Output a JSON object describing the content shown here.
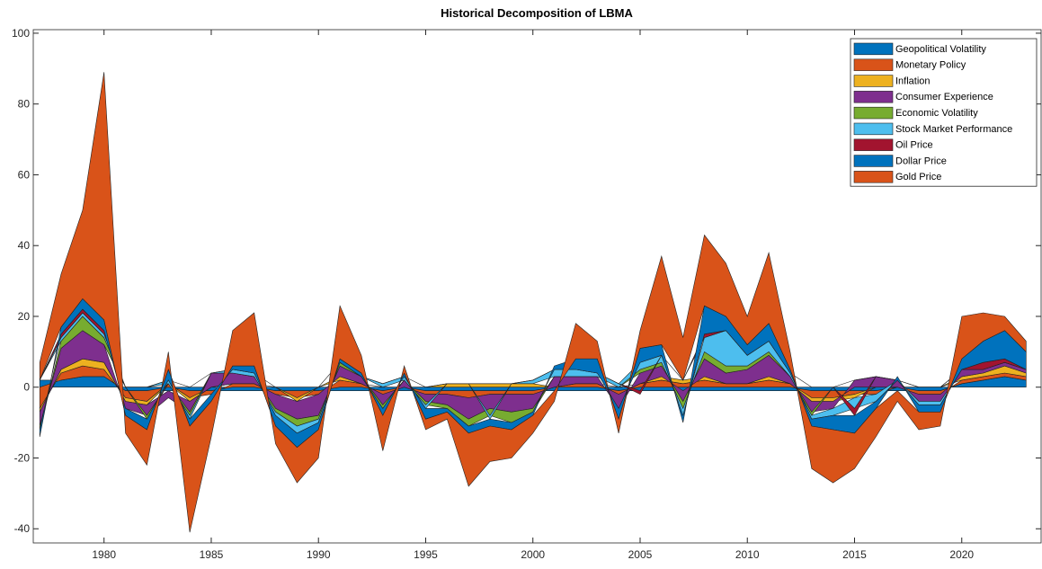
{
  "chart_data": {
    "type": "area",
    "stacked": true,
    "title": "Historical Decomposition of LBMA",
    "x": [
      1977,
      1978,
      1979,
      1980,
      1981,
      1982,
      1983,
      1984,
      1985,
      1986,
      1987,
      1988,
      1989,
      1990,
      1991,
      1992,
      1993,
      1994,
      1995,
      1996,
      1997,
      1998,
      1999,
      2000,
      2001,
      2002,
      2003,
      2004,
      2005,
      2006,
      2007,
      2008,
      2009,
      2010,
      2011,
      2012,
      2013,
      2014,
      2015,
      2016,
      2017,
      2018,
      2019,
      2020,
      2021,
      2022,
      2023
    ],
    "xlim": [
      1976.7,
      2023.7
    ],
    "xticks": [
      1980,
      1985,
      1990,
      1995,
      2000,
      2005,
      2010,
      2015,
      2020
    ],
    "ylim": [
      -44,
      101
    ],
    "yticks": [
      -40,
      -20,
      0,
      20,
      40,
      60,
      80,
      100
    ],
    "legend": "upper right",
    "series": [
      {
        "name": "Geopolitical Volatility",
        "color": "#0072BD",
        "values": [
          2,
          2,
          3,
          3,
          -1,
          -1,
          -1,
          -1,
          -1,
          -1,
          -1,
          -1,
          -1,
          -1,
          -1,
          -1,
          -1,
          -1,
          -1,
          -1,
          -1,
          -1,
          -1,
          -1,
          -1,
          -1,
          -1,
          -1,
          -1,
          -1,
          -1,
          -1,
          -1,
          -1,
          -1,
          -1,
          -1,
          -1,
          -1,
          -1,
          -1,
          -1,
          -1,
          1,
          2,
          3,
          2
        ]
      },
      {
        "name": "Monetary Policy",
        "color": "#D95319",
        "values": [
          -6,
          2,
          3,
          2,
          -2,
          -3,
          1,
          -2,
          -1,
          1,
          1,
          -1,
          -2,
          -1,
          2,
          1,
          -1,
          0,
          -1,
          -1,
          -2,
          -1,
          -1,
          -1,
          0,
          1,
          1,
          -1,
          1,
          2,
          1,
          2,
          1,
          1,
          2,
          1,
          -2,
          -2,
          -1,
          -1,
          0,
          -1,
          -1,
          1,
          1,
          1,
          1
        ]
      },
      {
        "name": "Inflation",
        "color": "#EDB120",
        "values": [
          -1,
          1,
          2,
          2,
          -1,
          -1,
          0,
          -1,
          0,
          0,
          0,
          0,
          -1,
          0,
          1,
          0,
          0,
          0,
          0,
          1,
          1,
          1,
          1,
          1,
          0,
          0,
          0,
          0,
          0,
          1,
          1,
          1,
          0,
          0,
          1,
          0,
          -1,
          -1,
          -1,
          0,
          0,
          0,
          0,
          1,
          1,
          2,
          1
        ]
      },
      {
        "name": "Consumer Experience",
        "color": "#7E2F8E",
        "values": [
          -4,
          6,
          8,
          5,
          -2,
          -3,
          -2,
          -3,
          4,
          3,
          2,
          -4,
          -5,
          -6,
          3,
          2,
          -3,
          2,
          -2,
          -3,
          -6,
          -4,
          -5,
          -4,
          3,
          2,
          2,
          -4,
          3,
          3,
          -3,
          5,
          3,
          4,
          6,
          2,
          -3,
          -2,
          2,
          3,
          2,
          -2,
          -2,
          2,
          1,
          1,
          1
        ]
      },
      {
        "name": "Economic Volatility",
        "color": "#77AC30",
        "values": [
          -1,
          2,
          4,
          2,
          0,
          -1,
          0,
          -1,
          0,
          0,
          0,
          -1,
          -2,
          -1,
          1,
          0,
          -1,
          0,
          -1,
          -1,
          -2,
          -2,
          -3,
          -1,
          0,
          0,
          0,
          0,
          1,
          1,
          -2,
          2,
          2,
          1,
          1,
          0,
          -1,
          0,
          0,
          0,
          0,
          0,
          0,
          0,
          0,
          0,
          0
        ]
      },
      {
        "name": "Stock Market Performance",
        "color": "#4DBEEE",
        "values": [
          0,
          1,
          1,
          1,
          0,
          0,
          1,
          -1,
          0,
          1,
          1,
          -1,
          -2,
          -1,
          0,
          0,
          1,
          1,
          -1,
          0,
          0,
          -1,
          0,
          1,
          2,
          2,
          1,
          1,
          2,
          2,
          -2,
          4,
          10,
          3,
          3,
          1,
          -1,
          -2,
          -3,
          -2,
          0,
          -1,
          -1,
          0,
          0,
          0,
          0
        ]
      },
      {
        "name": "Oil Price",
        "color": "#A2142F",
        "values": [
          0,
          1,
          1,
          1,
          0,
          0,
          0,
          0,
          0,
          0,
          0,
          0,
          0,
          0,
          0,
          0,
          0,
          0,
          0,
          0,
          0,
          0,
          0,
          0,
          0,
          0,
          0,
          0,
          -1,
          0,
          0,
          1,
          0,
          0,
          0,
          0,
          0,
          0,
          -2,
          0,
          0,
          0,
          0,
          0,
          2,
          1,
          0
        ]
      },
      {
        "name": "Dollar Price",
        "color": "#0072BD",
        "values": [
          -2,
          2,
          3,
          3,
          -2,
          -3,
          3,
          -2,
          -2,
          1,
          2,
          -3,
          -4,
          -2,
          1,
          1,
          -2,
          1,
          -3,
          -1,
          -2,
          -2,
          -2,
          -1,
          1,
          3,
          4,
          -3,
          4,
          3,
          -2,
          8,
          4,
          3,
          5,
          1,
          -2,
          -4,
          -5,
          -2,
          1,
          -2,
          -2,
          3,
          6,
          8,
          5
        ]
      },
      {
        "name": "Gold Price",
        "color": "#D95319",
        "values": [
          5,
          15,
          25,
          70,
          -5,
          -10,
          5,
          -30,
          -10,
          10,
          15,
          -5,
          -10,
          -8,
          15,
          5,
          -10,
          2,
          -3,
          -2,
          -15,
          -10,
          -8,
          -5,
          -3,
          10,
          5,
          -4,
          5,
          25,
          12,
          20,
          15,
          8,
          20,
          5,
          -12,
          -15,
          -10,
          -8,
          -3,
          -5,
          -4,
          12,
          8,
          4,
          3
        ]
      }
    ]
  }
}
